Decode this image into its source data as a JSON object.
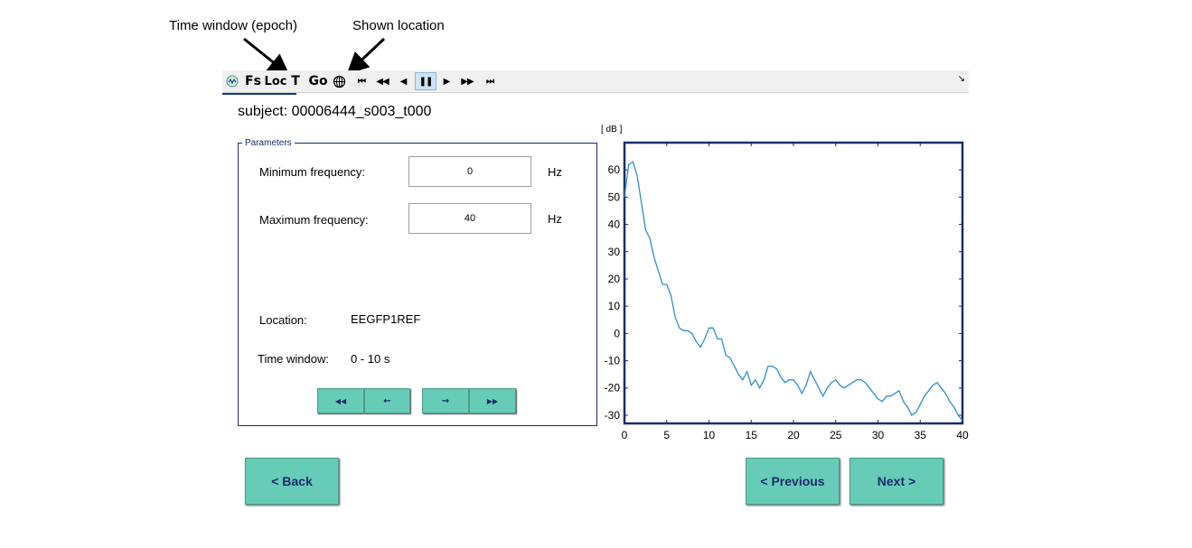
{
  "annotations": {
    "time_window": "Time window (epoch)",
    "shown_location": "Shown location"
  },
  "toolbar": {
    "app_icon": "eeg-app-icon",
    "fs": "Fs",
    "loc": "Loc",
    "t": "T",
    "go": "Go",
    "location_icon": "head-location-icon",
    "first": "⏮",
    "rewind": "◀◀",
    "step_back": "◀",
    "pause": "❚❚",
    "play": "▶",
    "fast_forward": "▶▶",
    "last": "⏭",
    "corner": "↘"
  },
  "subject": "subject: 00006444_s003_t000",
  "parameters": {
    "title": "Parameters",
    "min_freq_label": "Minimum frequency:",
    "min_freq_value": "0",
    "max_freq_label": "Maximum frequency:",
    "max_freq_value": "40",
    "unit": "Hz",
    "location_label": "Location:",
    "location_value": "EEGFP1REF",
    "time_window_label": "Time window:",
    "time_window_value": "0 - 10 s",
    "nav": {
      "first": "◀◀",
      "prev": "←",
      "next": "→",
      "last": "▶▶"
    }
  },
  "buttons": {
    "back": "<  Back",
    "previous": "< Previous",
    "next": "Next  >"
  },
  "chart_data": {
    "type": "line",
    "ylabel": "[ dB ]",
    "xlabel": "",
    "xlim": [
      0,
      40
    ],
    "ylim": [
      -33,
      70
    ],
    "x_ticks": [
      0,
      5,
      10,
      15,
      20,
      25,
      30,
      35,
      40
    ],
    "y_ticks": [
      60,
      50,
      40,
      30,
      20,
      10,
      0,
      -10,
      -20,
      -30
    ],
    "color": "#2f8fd0",
    "series": [
      {
        "x": [
          0,
          0.5,
          1,
          1.5,
          2,
          2.5,
          3,
          3.5,
          4,
          4.5,
          5,
          5.5,
          6,
          6.5,
          7,
          7.5,
          8,
          8.5,
          9,
          9.5,
          10,
          10.5,
          11,
          11.5,
          12,
          12.5,
          13,
          13.5,
          14,
          14.5,
          15,
          15.5,
          16,
          16.5,
          17,
          17.5,
          18,
          18.5,
          19,
          19.5,
          20,
          20.5,
          21,
          21.5,
          22,
          22.5,
          23,
          23.5,
          24,
          24.5,
          25,
          25.5,
          26,
          26.5,
          27,
          27.5,
          28,
          28.5,
          29,
          29.5,
          30,
          30.5,
          31,
          31.5,
          32,
          32.5,
          33,
          33.5,
          34,
          34.5,
          35,
          35.5,
          36,
          36.5,
          37,
          37.5,
          38,
          38.5,
          39,
          39.5,
          40
        ],
        "y": [
          50,
          62,
          63,
          58,
          48,
          38,
          35,
          28,
          23,
          18,
          18,
          14,
          6,
          2,
          1,
          1,
          0,
          -3,
          -5,
          -2,
          2,
          2,
          -2,
          -2,
          -8,
          -9,
          -12,
          -15,
          -17,
          -14,
          -19,
          -17,
          -20,
          -17,
          -12,
          -12,
          -13,
          -16,
          -18,
          -17,
          -17,
          -19,
          -22,
          -19,
          -14,
          -17,
          -20,
          -23,
          -20,
          -18,
          -17,
          -19,
          -20,
          -19,
          -18,
          -17,
          -17,
          -18,
          -20,
          -22,
          -24,
          -25,
          -23,
          -23,
          -22,
          -21,
          -25,
          -27,
          -30,
          -29,
          -26,
          -23,
          -21,
          -19,
          -18,
          -20,
          -22,
          -25,
          -27,
          -30,
          -32
        ]
      }
    ]
  }
}
